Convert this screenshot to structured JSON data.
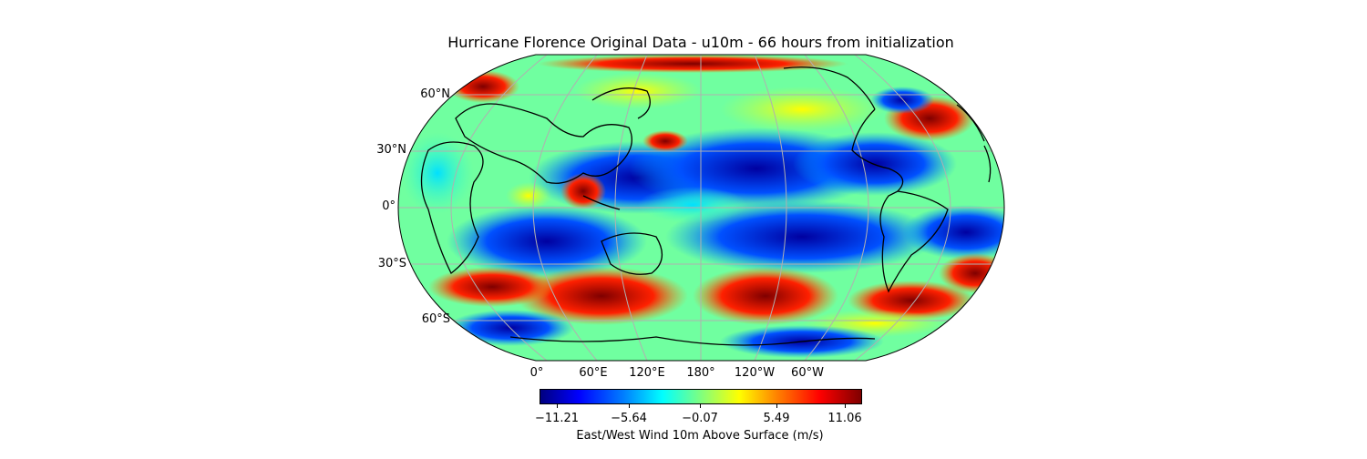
{
  "title": "Hurricane Florence Original Data - u10m - 66 hours from initialization",
  "map": {
    "projection": "Robinson",
    "colormap": "jet",
    "lat_labels": [
      "60°N",
      "30°N",
      "0°",
      "30°S",
      "60°S"
    ],
    "lon_labels": [
      "0°",
      "60°E",
      "120°E",
      "180°",
      "120°W",
      "60°W"
    ]
  },
  "colorbar": {
    "ticks": [
      "−11.21",
      "−5.64",
      "−0.07",
      "5.49",
      "11.06"
    ],
    "label": "East/West Wind 10m Above Surface (m/s)"
  }
}
